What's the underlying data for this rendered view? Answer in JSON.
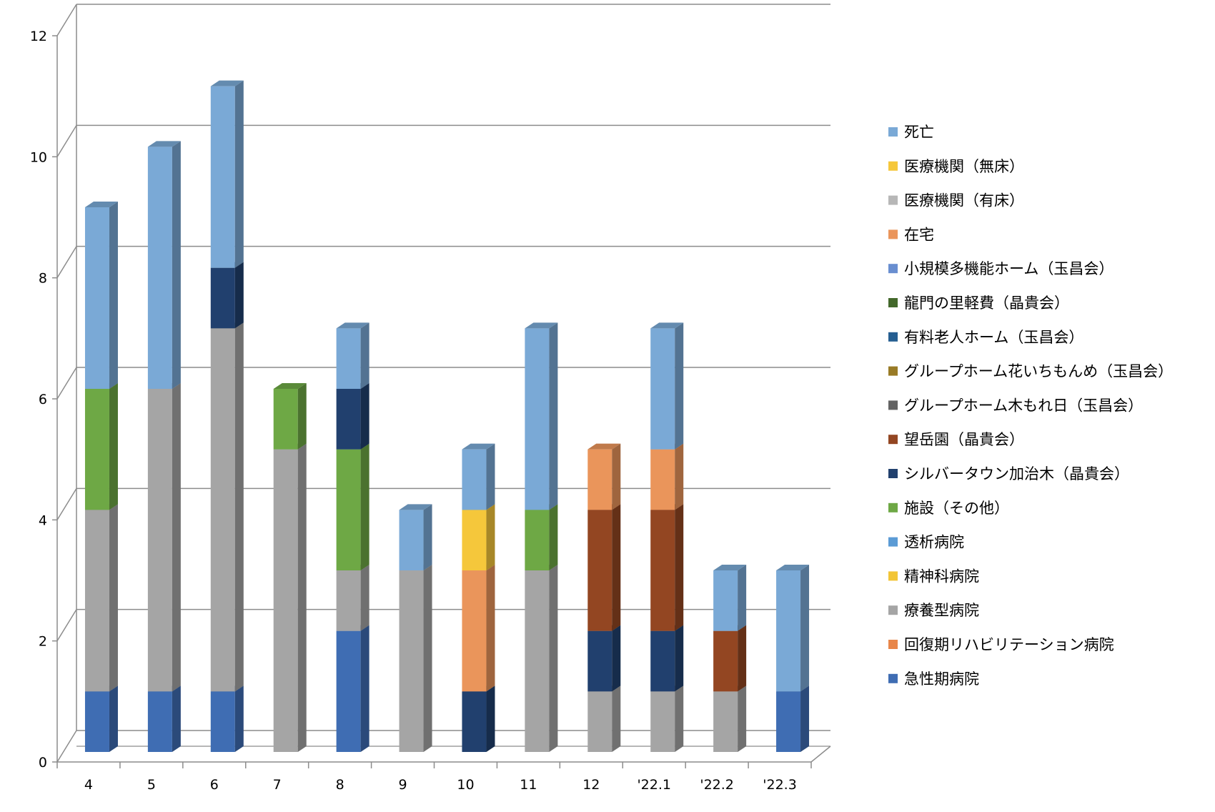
{
  "chart_data": {
    "type": "bar",
    "stacked": true,
    "three_d": true,
    "title": "",
    "xlabel": "",
    "ylabel": "",
    "ylim": [
      0,
      12
    ],
    "yticks": [
      "0",
      "2",
      "4",
      "6",
      "8",
      "10",
      "12"
    ],
    "grid": true,
    "legend_position": "right",
    "categories": [
      "4",
      "5",
      "6",
      "7",
      "8",
      "9",
      "10",
      "11",
      "12",
      "'22.1",
      "'22.2",
      "'22.3"
    ],
    "series": [
      {
        "name": "急性期病院",
        "color": "#3F6DB3",
        "values": [
          1,
          1,
          1,
          0,
          2,
          0,
          0,
          0,
          0,
          0,
          0,
          1
        ]
      },
      {
        "name": "回復期リハビリテーション病院",
        "color": "#E8864A",
        "values": [
          0,
          0,
          0,
          0,
          0,
          0,
          0,
          0,
          0,
          0,
          0,
          0
        ]
      },
      {
        "name": "療養型病院",
        "color": "#A5A5A5",
        "values": [
          3,
          5,
          6,
          5,
          1,
          3,
          0,
          3,
          1,
          1,
          1,
          0
        ]
      },
      {
        "name": "精神科病院",
        "color": "#F2C537",
        "values": [
          0,
          0,
          0,
          0,
          0,
          0,
          0,
          0,
          0,
          0,
          0,
          0
        ]
      },
      {
        "name": "透析病院",
        "color": "#5B9BD5",
        "values": [
          0,
          0,
          0,
          0,
          0,
          0,
          0,
          0,
          0,
          0,
          0,
          0
        ]
      },
      {
        "name": "施設（その他）",
        "color": "#6EA845",
        "values": [
          2,
          0,
          0,
          1,
          2,
          0,
          0,
          1,
          0,
          0,
          0,
          0
        ]
      },
      {
        "name": "シルバータウン加治木（晶貴会）",
        "color": "#21406E",
        "values": [
          0,
          0,
          1,
          0,
          1,
          0,
          1,
          0,
          1,
          1,
          0,
          0
        ]
      },
      {
        "name": "望岳園（晶貴会）",
        "color": "#934622",
        "values": [
          0,
          0,
          0,
          0,
          0,
          0,
          0,
          0,
          2,
          2,
          1,
          0
        ]
      },
      {
        "name": "グループホーム木もれ日（玉昌会）",
        "color": "#636363",
        "values": [
          0,
          0,
          0,
          0,
          0,
          0,
          0,
          0,
          0,
          0,
          0,
          0
        ]
      },
      {
        "name": "グループホーム花いちもんめ（玉昌会）",
        "color": "#997B26",
        "values": [
          0,
          0,
          0,
          0,
          0,
          0,
          0,
          0,
          0,
          0,
          0,
          0
        ]
      },
      {
        "name": "有料老人ホーム（玉昌会）",
        "color": "#255E91",
        "values": [
          0,
          0,
          0,
          0,
          0,
          0,
          0,
          0,
          0,
          0,
          0,
          0
        ]
      },
      {
        "name": "龍門の里軽費（晶貴会）",
        "color": "#43682B",
        "values": [
          0,
          0,
          0,
          0,
          0,
          0,
          0,
          0,
          0,
          0,
          0,
          0
        ]
      },
      {
        "name": "小規模多機能ホーム（玉昌会）",
        "color": "#698ED0",
        "values": [
          0,
          0,
          0,
          0,
          0,
          0,
          0,
          0,
          0,
          0,
          0,
          0
        ]
      },
      {
        "name": "在宅",
        "color": "#EA955B",
        "values": [
          0,
          0,
          0,
          0,
          0,
          0,
          2,
          0,
          1,
          1,
          0,
          0
        ]
      },
      {
        "name": "医療機関（有床）",
        "color": "#B7B7B7",
        "values": [
          0,
          0,
          0,
          0,
          0,
          0,
          0,
          0,
          0,
          0,
          0,
          0
        ]
      },
      {
        "name": "医療機関（無床）",
        "color": "#F5C73B",
        "values": [
          0,
          0,
          0,
          0,
          0,
          0,
          1,
          0,
          0,
          0,
          0,
          0
        ]
      },
      {
        "name": "死亡",
        "color": "#7AA9D6",
        "values": [
          3,
          4,
          3,
          0,
          1,
          1,
          1,
          3,
          0,
          2,
          1,
          2
        ]
      }
    ]
  }
}
